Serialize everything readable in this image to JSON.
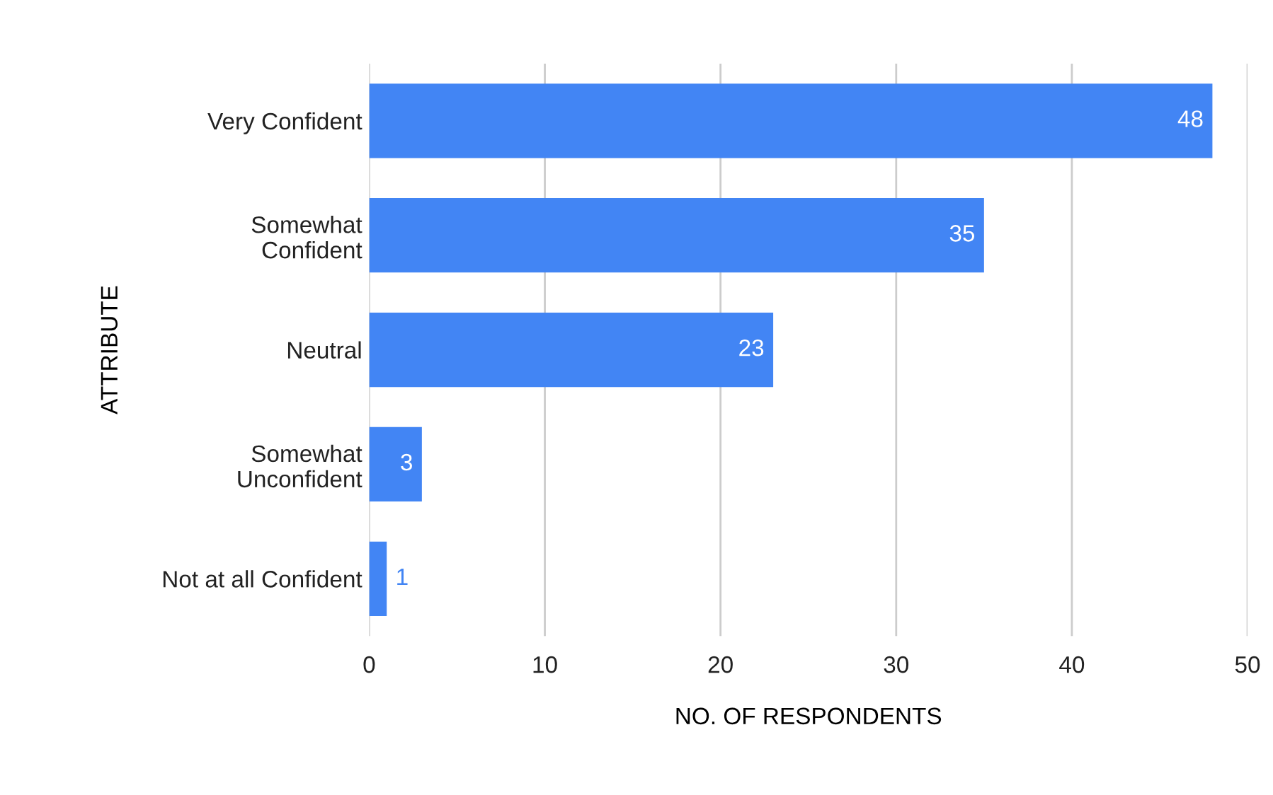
{
  "chart_data": {
    "type": "bar",
    "orientation": "horizontal",
    "categories": [
      "Very Confident",
      "Somewhat\nConfident",
      "Neutral",
      "Somewhat\nUnconfident",
      "Not at all Confident"
    ],
    "values": [
      48,
      35,
      23,
      3,
      1
    ],
    "color": "#4285f4",
    "data_labels": true,
    "xlabel": "NO. OF RESPONDENTS",
    "ylabel": "ATTRIBUTE",
    "xlim": [
      0,
      50
    ],
    "xticks": [
      0,
      10,
      20,
      30,
      40,
      50
    ],
    "grid": "x"
  }
}
